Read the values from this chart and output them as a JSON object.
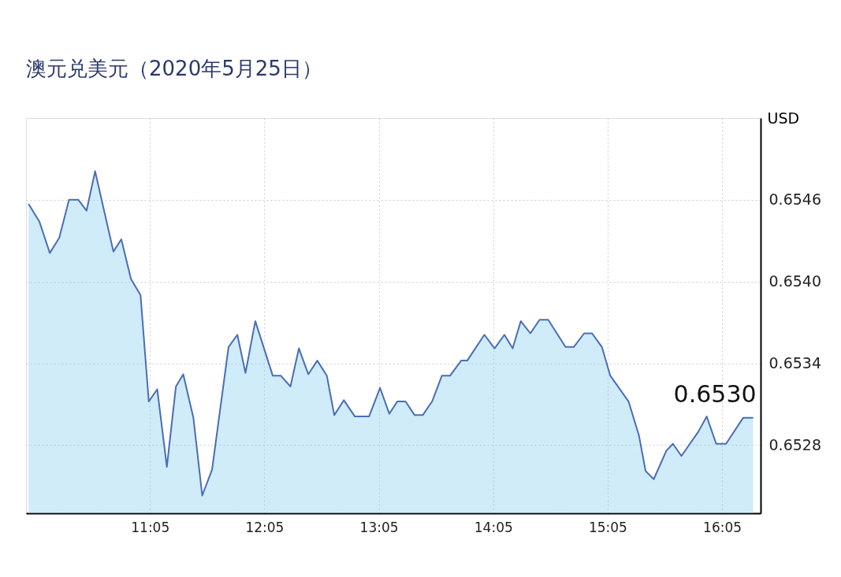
{
  "chart_data": {
    "type": "area",
    "title": "澳元兑美元（2020年5月25日）",
    "ylabel": "USD",
    "x": [
      10.022,
      10.117,
      10.208,
      10.29,
      10.376,
      10.458,
      10.529,
      10.604,
      10.764,
      10.833,
      10.917,
      11.001,
      11.073,
      11.147,
      11.231,
      11.31,
      11.374,
      11.463,
      11.54,
      11.626,
      11.77,
      11.847,
      11.918,
      12.004,
      12.156,
      12.226,
      12.311,
      12.385,
      12.467,
      12.546,
      12.629,
      12.694,
      12.778,
      12.874,
      12.998,
      13.094,
      13.175,
      13.245,
      13.317,
      13.396,
      13.467,
      13.549,
      13.635,
      13.707,
      13.803,
      13.856,
      14.006,
      14.095,
      14.181,
      14.253,
      14.324,
      14.408,
      14.488,
      14.564,
      14.715,
      14.787,
      14.878,
      14.947,
      15.033,
      15.106,
      15.266,
      15.357,
      15.415,
      15.486,
      15.597,
      15.654,
      15.728,
      15.877,
      15.949,
      16.032,
      16.118,
      16.267,
      16.355
    ],
    "series": [
      {
        "color": "#4a6db5",
        "values": [
          0.65457,
          0.65444,
          0.65421,
          0.65432,
          0.6546,
          0.6546,
          0.65452,
          0.65481,
          0.65422,
          0.65431,
          0.65402,
          0.6539,
          0.65312,
          0.65321,
          0.65264,
          0.65323,
          0.65332,
          0.653,
          0.65243,
          0.65262,
          0.65352,
          0.65361,
          0.65333,
          0.65371,
          0.65331,
          0.65331,
          0.65323,
          0.65351,
          0.65332,
          0.65342,
          0.65331,
          0.65302,
          0.65313,
          0.65301,
          0.65301,
          0.65322,
          0.65303,
          0.65312,
          0.65312,
          0.65302,
          0.65302,
          0.65312,
          0.65331,
          0.65331,
          0.65342,
          0.65342,
          0.65361,
          0.65351,
          0.65361,
          0.65351,
          0.65371,
          0.65362,
          0.65372,
          0.65372,
          0.65352,
          0.65352,
          0.65362,
          0.65362,
          0.65352,
          0.65331,
          0.65312,
          0.65287,
          0.65261,
          0.65255,
          0.65276,
          0.65281,
          0.65272,
          0.6529,
          0.65301,
          0.65281,
          0.65281,
          0.653,
          0.653
        ]
      }
    ],
    "xlim": [
      10.0,
      16.42
    ],
    "xticks": [
      {
        "value": 11.0833,
        "label": "11:05"
      },
      {
        "value": 12.0833,
        "label": "12:05"
      },
      {
        "value": 13.0833,
        "label": "13:05"
      },
      {
        "value": 14.0833,
        "label": "14:05"
      },
      {
        "value": 15.0833,
        "label": "15:05"
      },
      {
        "value": 16.0833,
        "label": "16:05"
      }
    ],
    "ylim": [
      0.6523,
      0.6552
    ],
    "yticks": [
      {
        "value": 0.6528,
        "label": "0.6528"
      },
      {
        "value": 0.6534,
        "label": "0.6534"
      },
      {
        "value": 0.654,
        "label": "0.6540"
      },
      {
        "value": 0.6546,
        "label": "0.6546"
      }
    ],
    "grid": true,
    "annotations": [
      {
        "text": "0.6530",
        "x": 16.355,
        "y": 0.653
      }
    ]
  }
}
